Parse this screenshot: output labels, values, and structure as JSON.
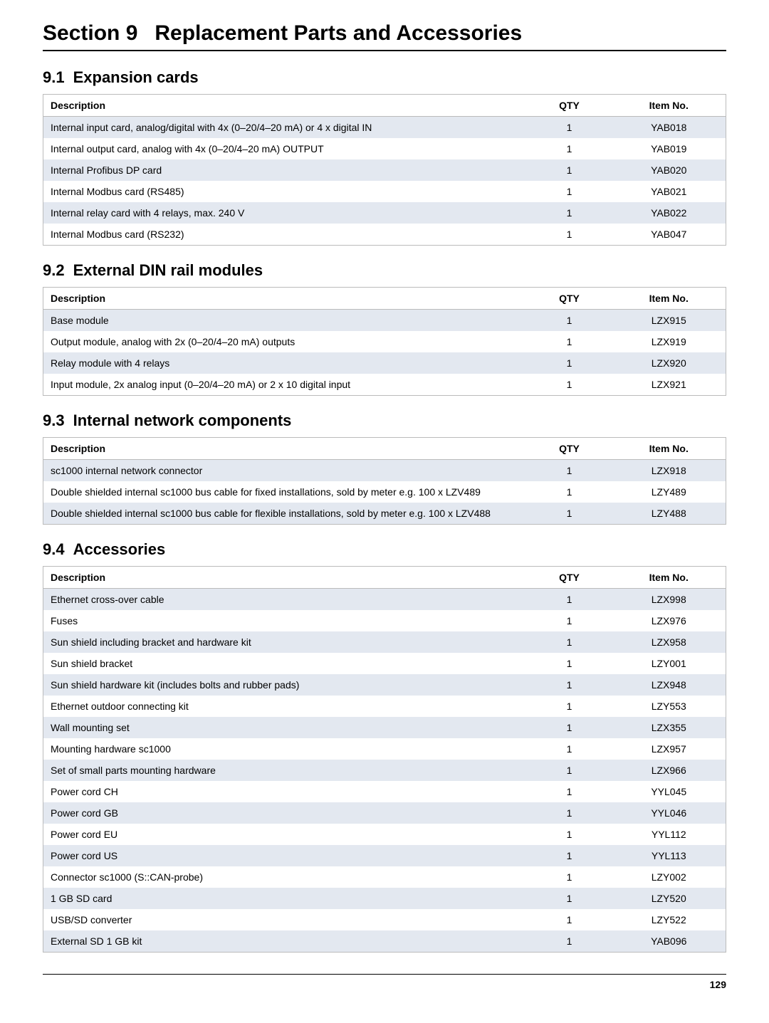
{
  "page": {
    "section_number": "Section 9",
    "section_title": "Replacement Parts and Accessories",
    "page_number": "129",
    "colors": {
      "row_odd": "#e3e8f0",
      "row_even": "#ffffff",
      "border": "#bbbbbb",
      "text": "#000000"
    }
  },
  "subsections": [
    {
      "num": "9.1",
      "title": "Expansion cards",
      "columns": [
        "Description",
        "QTY",
        "Item No."
      ],
      "rows": [
        [
          "Internal input card, analog/digital with 4x (0–20/4–20 mA) or 4 x digital IN",
          "1",
          "YAB018"
        ],
        [
          "Internal output card, analog with 4x (0–20/4–20 mA) OUTPUT",
          "1",
          "YAB019"
        ],
        [
          "Internal Profibus DP card",
          "1",
          "YAB020"
        ],
        [
          "Internal Modbus card (RS485)",
          "1",
          "YAB021"
        ],
        [
          "Internal relay card with 4 relays, max. 240 V",
          "1",
          "YAB022"
        ],
        [
          "Internal Modbus card (RS232)",
          "1",
          "YAB047"
        ]
      ]
    },
    {
      "num": "9.2",
      "title": "External DIN rail modules",
      "columns": [
        "Description",
        "QTY",
        "Item No."
      ],
      "rows": [
        [
          "Base module",
          "1",
          "LZX915"
        ],
        [
          "Output module, analog with 2x (0–20/4–20 mA) outputs",
          "1",
          "LZX919"
        ],
        [
          "Relay module with 4 relays",
          "1",
          "LZX920"
        ],
        [
          "Input module, 2x analog input (0–20/4–20 mA) or 2 x 10 digital input",
          "1",
          "LZX921"
        ]
      ]
    },
    {
      "num": "9.3",
      "title": "Internal network components",
      "columns": [
        "Description",
        "QTY",
        "Item No."
      ],
      "rows": [
        [
          "sc1000 internal network connector",
          "1",
          "LZX918"
        ],
        [
          "Double shielded internal sc1000 bus cable for fixed installations, sold by meter e.g. 100 x LZV489",
          "1",
          "LZY489"
        ],
        [
          "Double shielded internal sc1000 bus cable for flexible installations, sold by meter e.g. 100 x LZV488",
          "1",
          "LZY488"
        ]
      ]
    },
    {
      "num": "9.4",
      "title": "Accessories",
      "columns": [
        "Description",
        "QTY",
        "Item No."
      ],
      "rows": [
        [
          "Ethernet cross-over cable",
          "1",
          "LZX998"
        ],
        [
          "Fuses",
          "1",
          "LZX976"
        ],
        [
          "Sun shield including bracket and hardware kit",
          "1",
          "LZX958"
        ],
        [
          "Sun shield bracket",
          "1",
          "LZY001"
        ],
        [
          "Sun shield hardware kit (includes bolts and rubber pads)",
          "1",
          "LZX948"
        ],
        [
          "Ethernet outdoor connecting kit",
          "1",
          "LZY553"
        ],
        [
          "Wall mounting set",
          "1",
          "LZX355"
        ],
        [
          "Mounting hardware sc1000",
          "1",
          "LZX957"
        ],
        [
          "Set of small parts mounting hardware",
          "1",
          "LZX966"
        ],
        [
          "Power cord CH",
          "1",
          "YYL045"
        ],
        [
          "Power cord GB",
          "1",
          "YYL046"
        ],
        [
          "Power cord EU",
          "1",
          "YYL112"
        ],
        [
          "Power cord US",
          "1",
          "YYL113"
        ],
        [
          "Connector sc1000 (S::CAN-probe)",
          "1",
          "LZY002"
        ],
        [
          "1 GB SD card",
          "1",
          "LZY520"
        ],
        [
          "USB/SD converter",
          "1",
          "LZY522"
        ],
        [
          "External SD 1 GB kit",
          "1",
          "YAB096"
        ]
      ]
    }
  ]
}
